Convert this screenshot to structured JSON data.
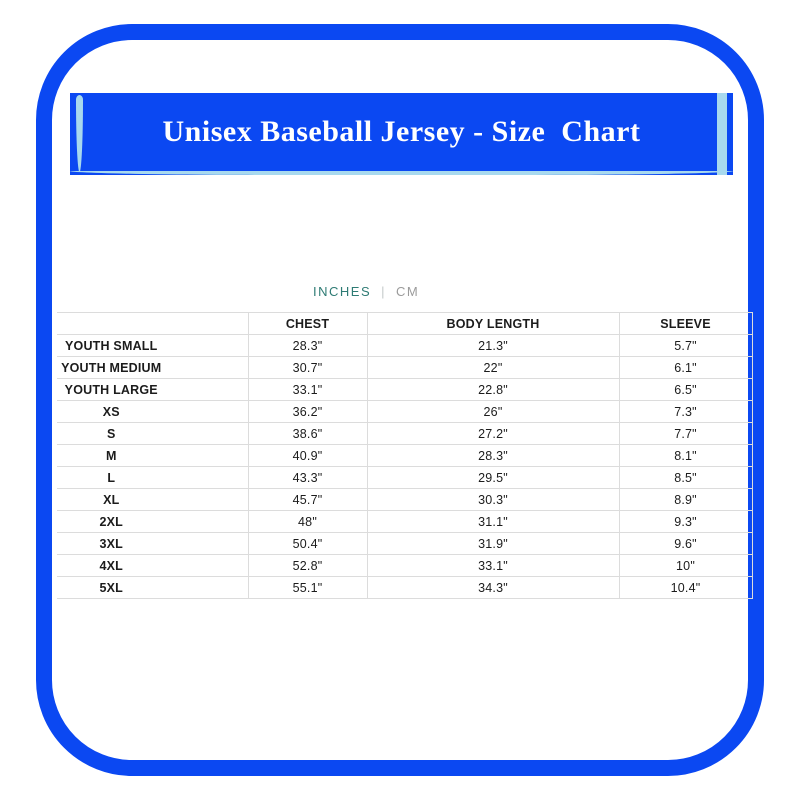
{
  "header": {
    "title": "Unisex Baseball Jersey - Size  Chart"
  },
  "unit_toggle": {
    "inches_label": "INCHES",
    "separator": "|",
    "cm_label": "CM",
    "selected": "INCHES"
  },
  "size_table": {
    "columns": [
      "",
      "CHEST",
      "BODY LENGTH",
      "SLEEVE"
    ],
    "rows": [
      {
        "size": "YOUTH SMALL",
        "chest": "28.3\"",
        "body_length": "21.3\"",
        "sleeve": "5.7\""
      },
      {
        "size": "YOUTH MEDIUM",
        "chest": "30.7\"",
        "body_length": "22\"",
        "sleeve": "6.1\""
      },
      {
        "size": "YOUTH LARGE",
        "chest": "33.1\"",
        "body_length": "22.8\"",
        "sleeve": "6.5\""
      },
      {
        "size": "XS",
        "chest": "36.2\"",
        "body_length": "26\"",
        "sleeve": "7.3\""
      },
      {
        "size": "S",
        "chest": "38.6\"",
        "body_length": "27.2\"",
        "sleeve": "7.7\""
      },
      {
        "size": "M",
        "chest": "40.9\"",
        "body_length": "28.3\"",
        "sleeve": "8.1\""
      },
      {
        "size": "L",
        "chest": "43.3\"",
        "body_length": "29.5\"",
        "sleeve": "8.5\""
      },
      {
        "size": "XL",
        "chest": "45.7\"",
        "body_length": "30.3\"",
        "sleeve": "8.9\""
      },
      {
        "size": "2XL",
        "chest": "48\"",
        "body_length": "31.1\"",
        "sleeve": "9.3\""
      },
      {
        "size": "3XL",
        "chest": "50.4\"",
        "body_length": "31.9\"",
        "sleeve": "9.6\""
      },
      {
        "size": "4XL",
        "chest": "52.8\"",
        "body_length": "33.1\"",
        "sleeve": "10\""
      },
      {
        "size": "5XL",
        "chest": "55.1\"",
        "body_length": "34.3\"",
        "sleeve": "10.4\""
      }
    ]
  },
  "colors": {
    "frame_blue": "#0b48f2",
    "accent_light_blue": "#a8d9ee",
    "inches_teal": "#2e7b74",
    "cm_gray": "#9b9b9b",
    "grid_gray": "#dcdcdc"
  }
}
